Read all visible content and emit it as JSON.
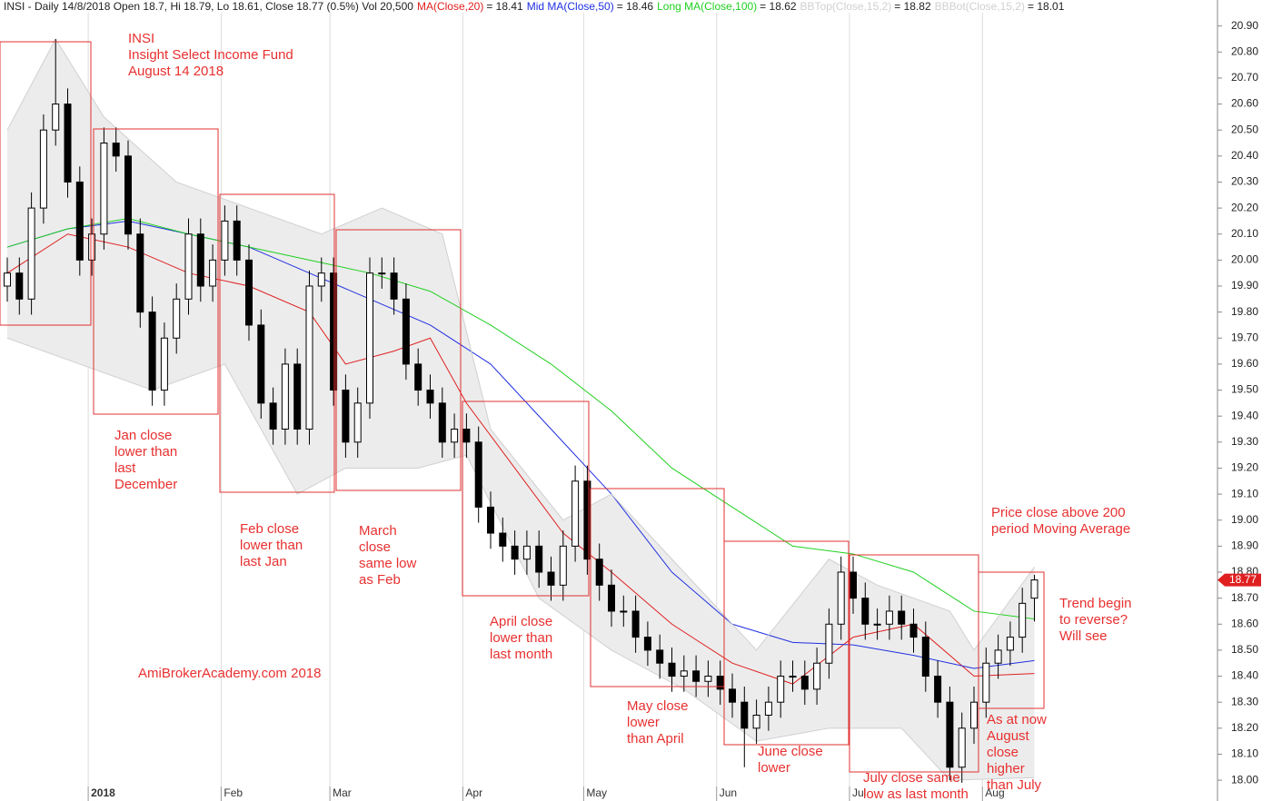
{
  "chart_data": {
    "type": "candlestick",
    "header": "INSI - Daily 14/8/2018 Open 18.7, Hi 18.79, Lo 18.61, Close 18.77 (0.5%) Vol 20,500",
    "categories": [
      null,
      null,
      null,
      null,
      null,
      null,
      null,
      "2018",
      null,
      null,
      null,
      null,
      null,
      null,
      null,
      null,
      null,
      null,
      "Feb",
      null,
      null,
      null,
      null,
      null,
      null,
      null,
      null,
      "Mar",
      null,
      null,
      null,
      null,
      null,
      null,
      null,
      null,
      null,
      null,
      "Apr",
      null,
      null,
      null,
      null,
      null,
      null,
      null,
      null,
      null,
      "May",
      null,
      null,
      null,
      null,
      null,
      null,
      null,
      null,
      null,
      null,
      "Jun",
      null,
      null,
      null,
      null,
      null,
      null,
      null,
      null,
      null,
      null,
      "Jul",
      null,
      null,
      null,
      null,
      null,
      null,
      null,
      null,
      null,
      null,
      "Aug",
      null,
      null,
      null,
      null
    ],
    "open": [
      19.9,
      19.95,
      19.85,
      20.2,
      20.5,
      20.6,
      20.3,
      20.0,
      20.1,
      20.45,
      20.4,
      20.1,
      19.8,
      19.5,
      19.7,
      19.85,
      20.1,
      19.9,
      20.0,
      20.15,
      20.0,
      19.75,
      19.45,
      19.35,
      19.6,
      19.35,
      19.9,
      19.95,
      19.5,
      19.3,
      19.45,
      19.95,
      19.95,
      19.85,
      19.6,
      19.5,
      19.45,
      19.3,
      19.35,
      19.3,
      19.05,
      18.95,
      18.9,
      18.85,
      18.9,
      18.8,
      18.75,
      18.9,
      19.15,
      18.85,
      18.75,
      18.65,
      18.65,
      18.55,
      18.5,
      18.45,
      18.4,
      18.42,
      18.38,
      18.4,
      18.35,
      18.3,
      18.2,
      18.25,
      18.3,
      18.4,
      18.4,
      18.35,
      18.45,
      18.6,
      18.8,
      18.7,
      18.6,
      18.6,
      18.65,
      18.6,
      18.55,
      18.4,
      18.3,
      18.05,
      18.2,
      18.3,
      18.45,
      18.5,
      18.55,
      18.7
    ],
    "high": [
      20.01,
      20.01,
      20.26,
      20.56,
      20.85,
      20.66,
      20.36,
      20.16,
      20.51,
      20.51,
      20.46,
      20.16,
      19.86,
      19.76,
      19.91,
      20.16,
      20.16,
      20.06,
      20.21,
      20.21,
      20.06,
      19.81,
      19.51,
      19.66,
      19.66,
      19.96,
      20.01,
      20.01,
      19.56,
      19.51,
      20.01,
      20.01,
      20.01,
      19.91,
      19.66,
      19.56,
      19.51,
      19.41,
      19.41,
      19.36,
      19.11,
      19.01,
      18.96,
      18.96,
      18.96,
      18.86,
      18.96,
      19.21,
      19.21,
      18.91,
      18.81,
      18.71,
      18.71,
      18.61,
      18.56,
      18.51,
      18.48,
      18.48,
      18.46,
      18.46,
      18.41,
      18.36,
      18.31,
      18.36,
      18.46,
      18.46,
      18.46,
      18.51,
      18.66,
      18.86,
      18.86,
      18.76,
      18.66,
      18.71,
      18.71,
      18.66,
      18.61,
      18.46,
      18.36,
      18.26,
      18.36,
      18.51,
      18.56,
      18.61,
      18.74,
      18.79
    ],
    "low": [
      19.84,
      19.79,
      19.79,
      20.14,
      20.44,
      20.24,
      19.94,
      19.94,
      20.04,
      20.34,
      20.04,
      19.74,
      19.44,
      19.44,
      19.64,
      19.79,
      19.84,
      19.84,
      19.94,
      19.94,
      19.69,
      19.39,
      19.29,
      19.29,
      19.29,
      19.29,
      19.84,
      19.44,
      19.24,
      19.24,
      19.39,
      19.89,
      19.79,
      19.54,
      19.44,
      19.39,
      19.24,
      19.24,
      19.24,
      18.99,
      18.89,
      18.84,
      18.79,
      18.79,
      18.74,
      18.69,
      18.69,
      18.84,
      18.79,
      18.69,
      18.59,
      18.59,
      18.49,
      18.44,
      18.39,
      18.34,
      18.34,
      18.32,
      18.32,
      18.29,
      18.24,
      18.05,
      18.14,
      18.19,
      18.24,
      18.34,
      18.29,
      18.29,
      18.39,
      18.54,
      18.64,
      18.54,
      18.54,
      18.54,
      18.54,
      18.49,
      18.34,
      18.24,
      18.0,
      17.99,
      18.14,
      18.24,
      18.39,
      18.44,
      18.49,
      18.61
    ],
    "close": [
      19.95,
      19.85,
      20.2,
      20.5,
      20.6,
      20.3,
      20.0,
      20.1,
      20.45,
      20.4,
      20.1,
      19.8,
      19.5,
      19.7,
      19.85,
      20.1,
      19.9,
      20.0,
      20.15,
      20.0,
      19.75,
      19.45,
      19.35,
      19.6,
      19.35,
      19.9,
      19.95,
      19.5,
      19.3,
      19.45,
      19.95,
      19.95,
      19.85,
      19.6,
      19.5,
      19.45,
      19.3,
      19.35,
      19.3,
      19.05,
      18.95,
      18.9,
      18.85,
      18.9,
      18.8,
      18.75,
      18.9,
      19.15,
      18.85,
      18.75,
      18.65,
      18.65,
      18.55,
      18.5,
      18.45,
      18.4,
      18.42,
      18.38,
      18.4,
      18.35,
      18.3,
      18.2,
      18.25,
      18.3,
      18.4,
      18.4,
      18.35,
      18.45,
      18.6,
      18.8,
      18.7,
      18.6,
      18.6,
      18.65,
      18.6,
      18.55,
      18.4,
      18.3,
      18.05,
      18.2,
      18.3,
      18.45,
      18.5,
      18.55,
      18.68,
      18.77
    ],
    "series": [
      {
        "name": "MA(Close,20)",
        "last_label": "= 18.41",
        "color": "#e02020",
        "x": [
          0,
          5,
          10,
          15,
          20,
          25,
          28,
          32,
          35,
          38,
          42,
          46,
          50,
          55,
          60,
          65,
          70,
          75,
          80,
          85
        ],
        "values": [
          19.95,
          20.1,
          20.05,
          19.95,
          19.9,
          19.8,
          19.6,
          19.65,
          19.7,
          19.45,
          19.2,
          18.95,
          18.8,
          18.6,
          18.45,
          18.37,
          18.55,
          18.6,
          18.4,
          18.41
        ]
      },
      {
        "name": "Mid MA(Close,50)",
        "last_label": "= 18.46",
        "color": "#2030e0",
        "x": [
          0,
          5,
          10,
          15,
          20,
          25,
          30,
          35,
          40,
          45,
          50,
          55,
          60,
          65,
          70,
          75,
          80,
          85
        ],
        "values": [
          20.05,
          20.12,
          20.15,
          20.1,
          20.05,
          19.95,
          19.85,
          19.75,
          19.6,
          19.35,
          19.1,
          18.8,
          18.6,
          18.53,
          18.52,
          18.48,
          18.43,
          18.46
        ]
      },
      {
        "name": "Long MA(Close,100)",
        "last_label": "= 18.62",
        "color": "#20d020",
        "x": [
          0,
          5,
          10,
          15,
          20,
          25,
          30,
          35,
          40,
          45,
          50,
          55,
          60,
          65,
          70,
          75,
          80,
          85
        ],
        "values": [
          20.05,
          20.12,
          20.16,
          20.1,
          20.05,
          20.0,
          19.95,
          19.88,
          19.75,
          19.6,
          19.42,
          19.2,
          19.05,
          18.9,
          18.87,
          18.8,
          18.65,
          18.62
        ]
      },
      {
        "name": "BBTop(Close,15,2)",
        "last_label": "= 18.82",
        "color": "#d0d0d0",
        "x": [
          0,
          4,
          8,
          14,
          20,
          26,
          31,
          36,
          40,
          46,
          50,
          56,
          62,
          68,
          72,
          78,
          80,
          85
        ],
        "values": [
          20.5,
          20.85,
          20.55,
          20.3,
          20.2,
          20.1,
          20.2,
          20.1,
          19.35,
          19.0,
          19.1,
          18.8,
          18.5,
          18.85,
          18.75,
          18.65,
          18.5,
          18.82
        ]
      },
      {
        "name": "BBBot(Close,15,2)",
        "last_label": "= 18.01",
        "color": "#d0d0d0",
        "x": [
          0,
          6,
          12,
          18,
          24,
          28,
          34,
          38,
          44,
          50,
          56,
          62,
          68,
          74,
          78,
          85
        ],
        "values": [
          19.7,
          19.6,
          19.5,
          19.6,
          19.1,
          19.2,
          19.2,
          19.25,
          18.7,
          18.5,
          18.35,
          18.15,
          18.2,
          18.2,
          18.0,
          18.01
        ]
      }
    ],
    "band_fill": "#ececec",
    "ylim": [
      17.92,
      21.0
    ],
    "yticks": [
      {
        "value": 18.0,
        "label": "18.00"
      },
      {
        "value": 18.1,
        "label": "18.10"
      },
      {
        "value": 18.2,
        "label": "18.20"
      },
      {
        "value": 18.3,
        "label": "18.30"
      },
      {
        "value": 18.4,
        "label": "18.40"
      },
      {
        "value": 18.5,
        "label": "18.50"
      },
      {
        "value": 18.6,
        "label": "18.60"
      },
      {
        "value": 18.7,
        "label": "18.70"
      },
      {
        "value": 18.8,
        "label": "18.80"
      },
      {
        "value": 18.9,
        "label": "18.90"
      },
      {
        "value": 19.0,
        "label": "19.00"
      },
      {
        "value": 19.1,
        "label": "19.10"
      },
      {
        "value": 19.2,
        "label": "19.20"
      },
      {
        "value": 19.3,
        "label": "19.30"
      },
      {
        "value": 19.4,
        "label": "19.40"
      },
      {
        "value": 19.5,
        "label": "19.50"
      },
      {
        "value": 19.6,
        "label": "19.60"
      },
      {
        "value": 19.7,
        "label": "19.70"
      },
      {
        "value": 19.8,
        "label": "19.80"
      },
      {
        "value": 19.9,
        "label": "19.90"
      },
      {
        "value": 20.0,
        "label": "20.00"
      },
      {
        "value": 20.1,
        "label": "20.10"
      },
      {
        "value": 20.2,
        "label": "20.20"
      },
      {
        "value": 20.3,
        "label": "20.30"
      },
      {
        "value": 20.4,
        "label": "20.40"
      },
      {
        "value": 20.5,
        "label": "20.50"
      },
      {
        "value": 20.6,
        "label": "20.60"
      },
      {
        "value": 20.7,
        "label": "20.70"
      },
      {
        "value": 20.8,
        "label": "20.80"
      },
      {
        "value": 20.9,
        "label": "20.90"
      }
    ],
    "grid": true,
    "annotation_color": "#e83030",
    "annotations": [
      {
        "lines": [
          "INSI",
          "Insight Select Income Fund",
          "August 14 2018"
        ]
      },
      {
        "lines": [
          "Jan close",
          "lower than",
          "last",
          "December"
        ]
      },
      {
        "lines": [
          "Feb close",
          "lower than",
          "last Jan"
        ]
      },
      {
        "lines": [
          "March",
          "close",
          "same low",
          "as Feb"
        ]
      },
      {
        "lines": [
          "April close",
          "lower than",
          "last month"
        ]
      },
      {
        "lines": [
          "May close",
          "lower",
          "than April"
        ]
      },
      {
        "lines": [
          "June close",
          "lower"
        ]
      },
      {
        "lines": [
          "July close same",
          "low as last month"
        ]
      },
      {
        "lines": [
          "As at now",
          "August",
          "close",
          "higher",
          "than July"
        ]
      },
      {
        "lines": [
          "Price close above 200",
          "period Moving Average"
        ]
      },
      {
        "lines": [
          "Trend begin",
          "to reverse?",
          "Will see"
        ]
      },
      {
        "lines": [
          "AmiBrokerAcademy.com  2018"
        ]
      }
    ]
  }
}
